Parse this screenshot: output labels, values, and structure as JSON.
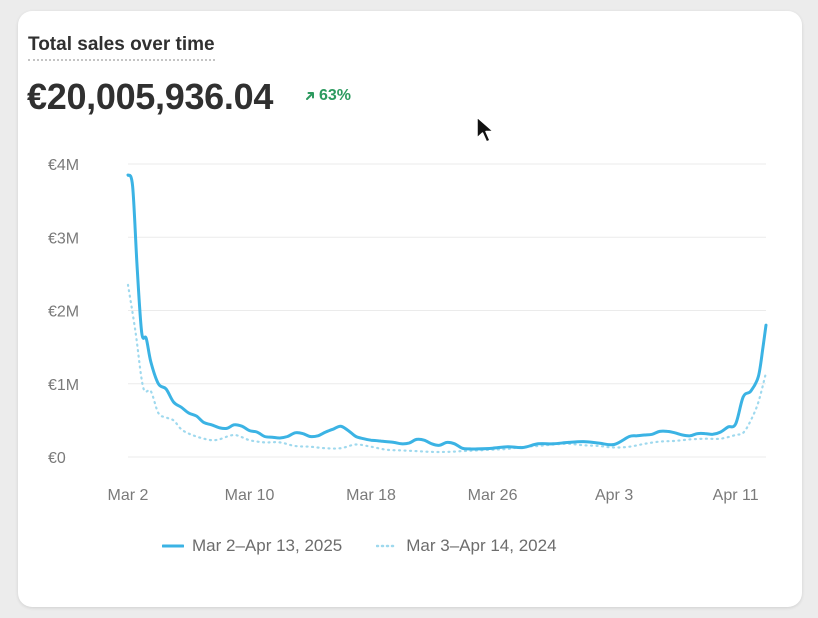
{
  "card": {
    "title": "Total sales over time",
    "total": "€20,005,936.04",
    "change": "63%",
    "change_icon": "arrow-up-right-icon",
    "change_color": "#2c9a5f"
  },
  "colors": {
    "current": "#3bb3e4",
    "previous": "#9fd9ee",
    "grid": "#ebebeb",
    "axis_text": "#7a7a7a"
  },
  "chart_data": {
    "type": "line",
    "title": "Total sales over time",
    "xlabel": "",
    "ylabel": "",
    "x_tick_labels": [
      "Mar 2",
      "Mar 10",
      "Mar 18",
      "Mar 26",
      "Apr 3",
      "Apr 11"
    ],
    "y_tick_labels": [
      "€0",
      "€1M",
      "€2M",
      "€3M",
      "€4M"
    ],
    "y_ticks": [
      0,
      1000000,
      2000000,
      3000000,
      4000000
    ],
    "ylim": [
      0,
      4000000
    ],
    "x_day_range": [
      0,
      42
    ],
    "grid": true,
    "legend_position": "bottom-center",
    "series": [
      {
        "name": "Mar 2–Apr 13, 2025",
        "style": "solid",
        "x": [
          0,
          0.3,
          0.6,
          0.9,
          1.2,
          1.5,
          2,
          2.5,
          3,
          3.5,
          4,
          4.5,
          5,
          5.5,
          6,
          6.5,
          7,
          7.5,
          8,
          8.5,
          9,
          9.5,
          10,
          10.5,
          11,
          11.5,
          12,
          12.5,
          13,
          13.5,
          14,
          14.5,
          15,
          15.5,
          16,
          16.5,
          17,
          17.5,
          18,
          18.5,
          19,
          19.5,
          20,
          20.5,
          21,
          21.5,
          22,
          22.5,
          23,
          24,
          25,
          26,
          27,
          28,
          29,
          30,
          31,
          32,
          33,
          33.5,
          34,
          34.5,
          35,
          35.5,
          36,
          36.5,
          37,
          37.5,
          38,
          38.5,
          39,
          39.5,
          40,
          40.5,
          41,
          41.5,
          41.8,
          42
        ],
        "values": [
          3850000,
          3700000,
          2600000,
          1700000,
          1620000,
          1300000,
          1000000,
          930000,
          750000,
          680000,
          600000,
          560000,
          470000,
          440000,
          400000,
          390000,
          440000,
          420000,
          360000,
          340000,
          280000,
          270000,
          260000,
          280000,
          330000,
          320000,
          280000,
          290000,
          340000,
          380000,
          420000,
          360000,
          280000,
          250000,
          230000,
          220000,
          210000,
          200000,
          180000,
          190000,
          240000,
          230000,
          180000,
          160000,
          200000,
          180000,
          120000,
          110000,
          110000,
          120000,
          140000,
          130000,
          180000,
          180000,
          200000,
          210000,
          190000,
          170000,
          280000,
          290000,
          300000,
          310000,
          350000,
          350000,
          330000,
          300000,
          290000,
          320000,
          320000,
          310000,
          340000,
          410000,
          450000,
          820000,
          900000,
          1100000,
          1500000,
          1800000
        ]
      },
      {
        "name": "Mar 3–Apr 14, 2024",
        "style": "dotted",
        "x": [
          0,
          0.5,
          1,
          1.5,
          2,
          2.5,
          3,
          3.5,
          4,
          4.5,
          5,
          5.5,
          6,
          7,
          8,
          9,
          10,
          11,
          12,
          13,
          14,
          15,
          16,
          17,
          18,
          19,
          20,
          21,
          22,
          23,
          24,
          25,
          26,
          27,
          28,
          29,
          30,
          31,
          32,
          33,
          34,
          35,
          36,
          37,
          38,
          39,
          40,
          40.5,
          41,
          41.5,
          42
        ],
        "values": [
          2350000,
          1700000,
          950000,
          900000,
          600000,
          540000,
          500000,
          380000,
          320000,
          280000,
          250000,
          230000,
          240000,
          300000,
          230000,
          200000,
          200000,
          150000,
          140000,
          120000,
          120000,
          170000,
          140000,
          100000,
          90000,
          80000,
          70000,
          70000,
          80000,
          90000,
          100000,
          110000,
          140000,
          150000,
          170000,
          180000,
          160000,
          150000,
          130000,
          140000,
          180000,
          210000,
          220000,
          240000,
          250000,
          250000,
          300000,
          330000,
          500000,
          750000,
          1150000
        ]
      }
    ]
  }
}
